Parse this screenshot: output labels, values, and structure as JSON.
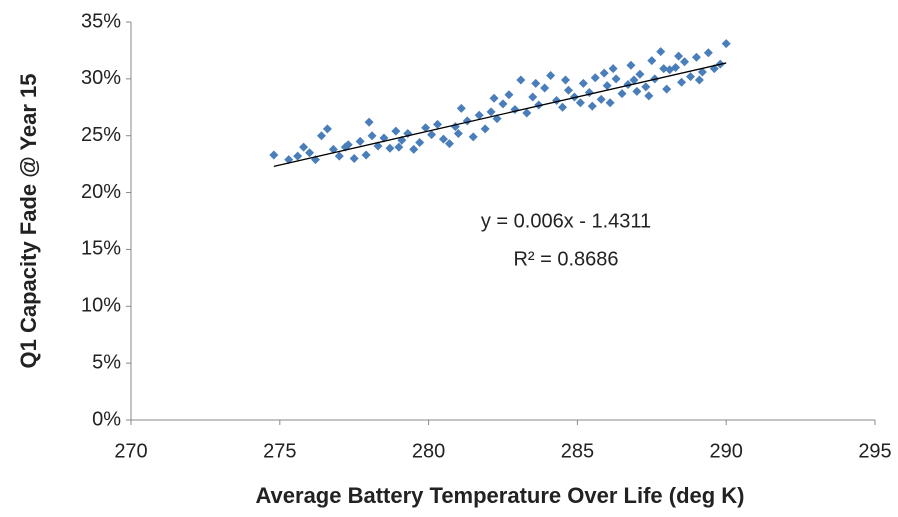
{
  "chart_data": {
    "type": "scatter",
    "xlabel": "Average Battery Temperature Over Life (deg K)",
    "ylabel": "Q1 Capacity Fade @ Year 15",
    "annotations": [
      "y = 0.006x - 1.4311",
      "R² = 0.8686"
    ],
    "xlim": [
      270,
      295
    ],
    "xticks": [
      270,
      275,
      280,
      285,
      290,
      295
    ],
    "ylim": [
      0,
      35
    ],
    "yticks": [
      {
        "value": 0,
        "label": "0%"
      },
      {
        "value": 5,
        "label": "5%"
      },
      {
        "value": 10,
        "label": "10%"
      },
      {
        "value": 15,
        "label": "15%"
      },
      {
        "value": 20,
        "label": "20%"
      },
      {
        "value": 25,
        "label": "25%"
      },
      {
        "value": 30,
        "label": "30%"
      },
      {
        "value": 35,
        "label": "35%"
      }
    ],
    "grid": false,
    "series": [
      {
        "color": "#4a7ebb",
        "x": [
          274.8,
          275.3,
          275.6,
          275.8,
          276.0,
          276.2,
          276.4,
          276.6,
          276.8,
          277.0,
          277.2,
          277.3,
          277.5,
          277.7,
          277.9,
          278.0,
          278.1,
          278.3,
          278.5,
          278.7,
          278.9,
          279.0,
          279.1,
          279.3,
          279.5,
          279.7,
          279.9,
          280.1,
          280.3,
          280.5,
          280.7,
          280.9,
          281.0,
          281.1,
          281.3,
          281.5,
          281.7,
          281.9,
          282.1,
          282.2,
          282.3,
          282.5,
          282.7,
          282.9,
          283.1,
          283.3,
          283.5,
          283.6,
          283.7,
          283.9,
          284.1,
          284.3,
          284.5,
          284.6,
          284.7,
          284.9,
          285.1,
          285.2,
          285.4,
          285.5,
          285.6,
          285.8,
          285.9,
          286.0,
          286.1,
          286.2,
          286.3,
          286.5,
          286.7,
          286.8,
          286.9,
          287.0,
          287.1,
          287.3,
          287.4,
          287.5,
          287.6,
          287.8,
          287.9,
          288.0,
          288.1,
          288.3,
          288.4,
          288.5,
          288.6,
          288.8,
          289.0,
          289.1,
          289.2,
          289.4,
          289.6,
          289.8,
          290.0
        ],
        "values": [
          23.3,
          22.9,
          23.2,
          24.0,
          23.5,
          22.9,
          25.0,
          25.6,
          23.8,
          23.2,
          24.0,
          24.2,
          23.0,
          24.5,
          23.3,
          26.2,
          25.0,
          24.1,
          24.8,
          23.9,
          25.4,
          24.0,
          24.6,
          25.2,
          23.8,
          24.4,
          25.7,
          25.1,
          26.0,
          24.7,
          24.3,
          25.8,
          25.2,
          27.4,
          26.3,
          24.9,
          26.8,
          25.6,
          27.1,
          28.3,
          26.5,
          27.8,
          28.6,
          27.3,
          29.9,
          27.0,
          28.4,
          29.6,
          27.7,
          29.2,
          30.3,
          28.1,
          27.5,
          29.9,
          29.0,
          28.4,
          27.9,
          29.6,
          28.8,
          27.6,
          30.1,
          28.2,
          30.5,
          29.4,
          27.9,
          30.9,
          30.0,
          28.7,
          29.5,
          31.2,
          29.9,
          28.9,
          30.4,
          29.3,
          28.5,
          31.6,
          30.0,
          32.4,
          30.9,
          29.1,
          30.8,
          31.0,
          32.0,
          29.7,
          31.5,
          30.2,
          31.9,
          29.9,
          30.6,
          32.3,
          30.9,
          31.3,
          33.1
        ]
      }
    ],
    "trendline": {
      "color": "#000000",
      "x": [
        274.8,
        290.0
      ],
      "values": [
        22.3,
        31.4
      ]
    }
  }
}
